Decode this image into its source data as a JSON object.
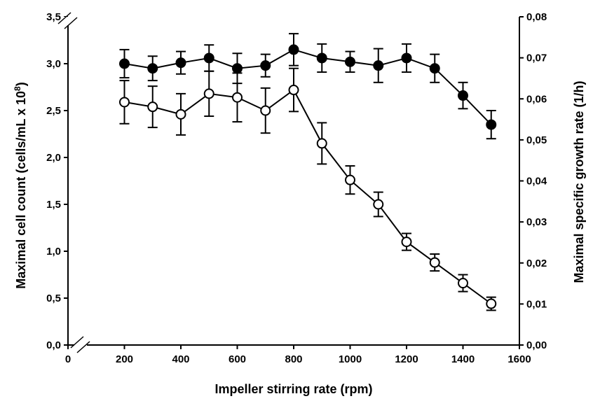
{
  "chart_data": {
    "type": "line",
    "xlabel": "Impeller stirring rate (rpm)",
    "ylabel_left": "Maximal cell count (cells/mL x 10",
    "ylabel_left_sup": "8",
    "ylabel_left_close": ")",
    "ylabel_right": "Maximal specific growth rate (1/h)",
    "xlim": [
      0,
      1600
    ],
    "ylim_left": [
      0,
      3.5
    ],
    "ylim_right": [
      0,
      0.08
    ],
    "x_ticks": [
      "0",
      "200",
      "400",
      "600",
      "800",
      "1000",
      "1200",
      "1400",
      "1600"
    ],
    "y_left_ticks": [
      "0,0",
      "0,5",
      "1,0",
      "1,5",
      "2,0",
      "2,5",
      "3,0",
      "3,5"
    ],
    "y_right_ticks": [
      "0,00",
      "0,01",
      "0,02",
      "0,03",
      "0,04",
      "0,05",
      "0,06",
      "0,07",
      "0,08"
    ],
    "axis_breaks": true,
    "grid": false,
    "legend": "none",
    "series": [
      {
        "marker": "filled",
        "axis": "left",
        "x": [
          200,
          300,
          400,
          500,
          600,
          700,
          800,
          900,
          1000,
          1100,
          1200,
          1300,
          1400,
          1500
        ],
        "y": [
          3.0,
          2.95,
          3.01,
          3.06,
          2.95,
          2.98,
          3.15,
          3.06,
          3.02,
          2.98,
          3.06,
          2.95,
          2.66,
          2.35
        ],
        "err": [
          0.15,
          0.13,
          0.12,
          0.14,
          0.16,
          0.12,
          0.17,
          0.15,
          0.11,
          0.18,
          0.15,
          0.15,
          0.14,
          0.15
        ]
      },
      {
        "marker": "open",
        "axis": "left",
        "x": [
          200,
          300,
          400,
          500,
          600,
          700,
          800,
          900,
          1000,
          1100,
          1200,
          1300,
          1400,
          1500
        ],
        "y": [
          2.59,
          2.54,
          2.46,
          2.68,
          2.64,
          2.5,
          2.72,
          2.15,
          1.76,
          1.5,
          1.1,
          0.88,
          0.66,
          0.44
        ],
        "err": [
          0.23,
          0.22,
          0.22,
          0.24,
          0.26,
          0.24,
          0.23,
          0.22,
          0.15,
          0.13,
          0.09,
          0.09,
          0.09,
          0.07
        ]
      }
    ]
  }
}
